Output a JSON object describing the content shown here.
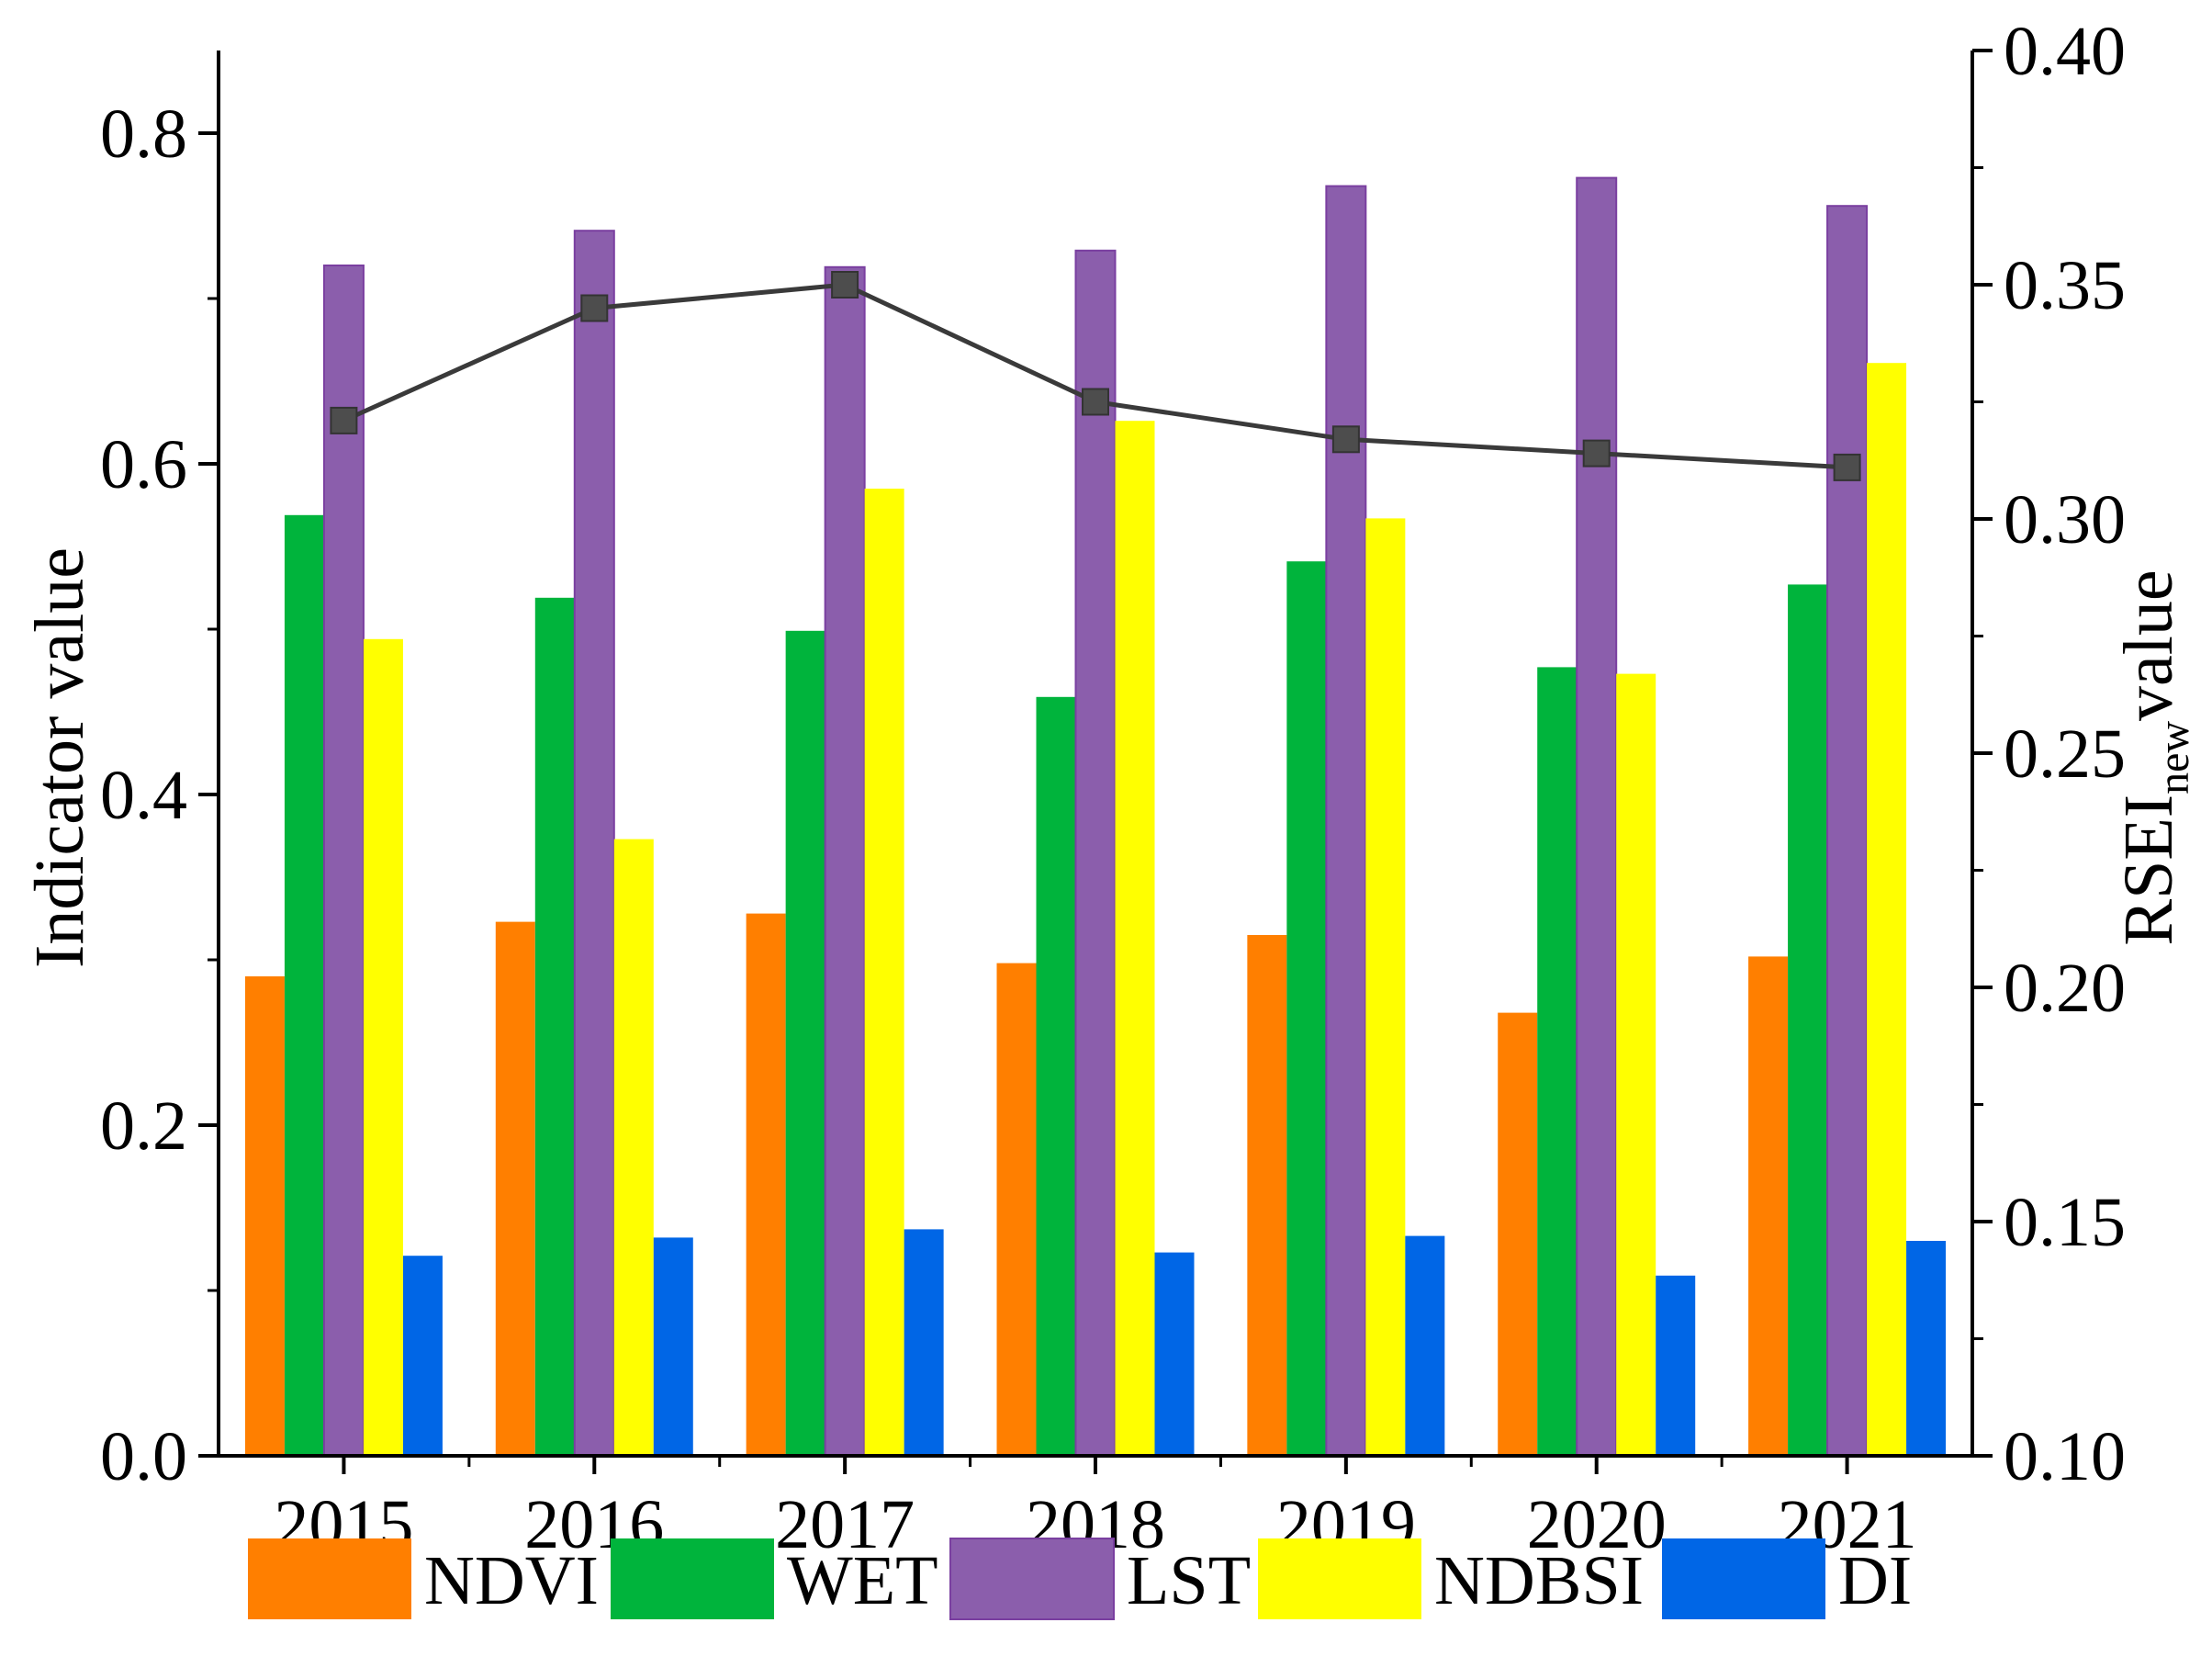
{
  "chart_data": {
    "type": "bar",
    "categories": [
      "2015",
      "2016",
      "2017",
      "2018",
      "2019",
      "2020",
      "2021"
    ],
    "series": [
      {
        "name": "NDVI",
        "color": "#FF7F00",
        "values": [
          0.29,
          0.323,
          0.328,
          0.298,
          0.315,
          0.268,
          0.302
        ]
      },
      {
        "name": "WET",
        "color": "#00B43C",
        "values": [
          0.569,
          0.519,
          0.499,
          0.459,
          0.541,
          0.477,
          0.527
        ]
      },
      {
        "name": "LST",
        "color": "#8B5EAC",
        "values": [
          0.72,
          0.741,
          0.719,
          0.729,
          0.768,
          0.773,
          0.756
        ]
      },
      {
        "name": "NDBSI",
        "color": "#FFFF00",
        "values": [
          0.494,
          0.373,
          0.585,
          0.626,
          0.567,
          0.473,
          0.661
        ]
      },
      {
        "name": "DI",
        "color": "#0066E6",
        "values": [
          0.121,
          0.132,
          0.137,
          0.123,
          0.133,
          0.109,
          0.13
        ]
      }
    ],
    "line_series": {
      "name": "RSEInew",
      "color": "#3A3A3A",
      "marker_color": "#4D4D4D",
      "axis": "right",
      "values": [
        0.321,
        0.345,
        0.35,
        0.325,
        0.317,
        0.314,
        0.311
      ]
    },
    "y_left": {
      "label": "Indicator value",
      "ylim": [
        0,
        0.85
      ],
      "ticks": [
        0.0,
        0.2,
        0.4,
        0.6,
        0.8
      ],
      "tick_labels": [
        "0.0",
        "0.2",
        "0.4",
        "0.6",
        "0.8"
      ]
    },
    "y_right": {
      "label_main": "RSEI",
      "label_sub": "new",
      "label_tail": "value",
      "ylim": [
        0.1,
        0.4
      ],
      "ticks": [
        0.1,
        0.15,
        0.2,
        0.25,
        0.3,
        0.35,
        0.4
      ],
      "tick_labels": [
        "0.10",
        "0.15",
        "0.20",
        "0.25",
        "0.30",
        "0.35",
        "0.40"
      ]
    },
    "legend": {
      "placement": "bottom"
    },
    "grid": false
  }
}
